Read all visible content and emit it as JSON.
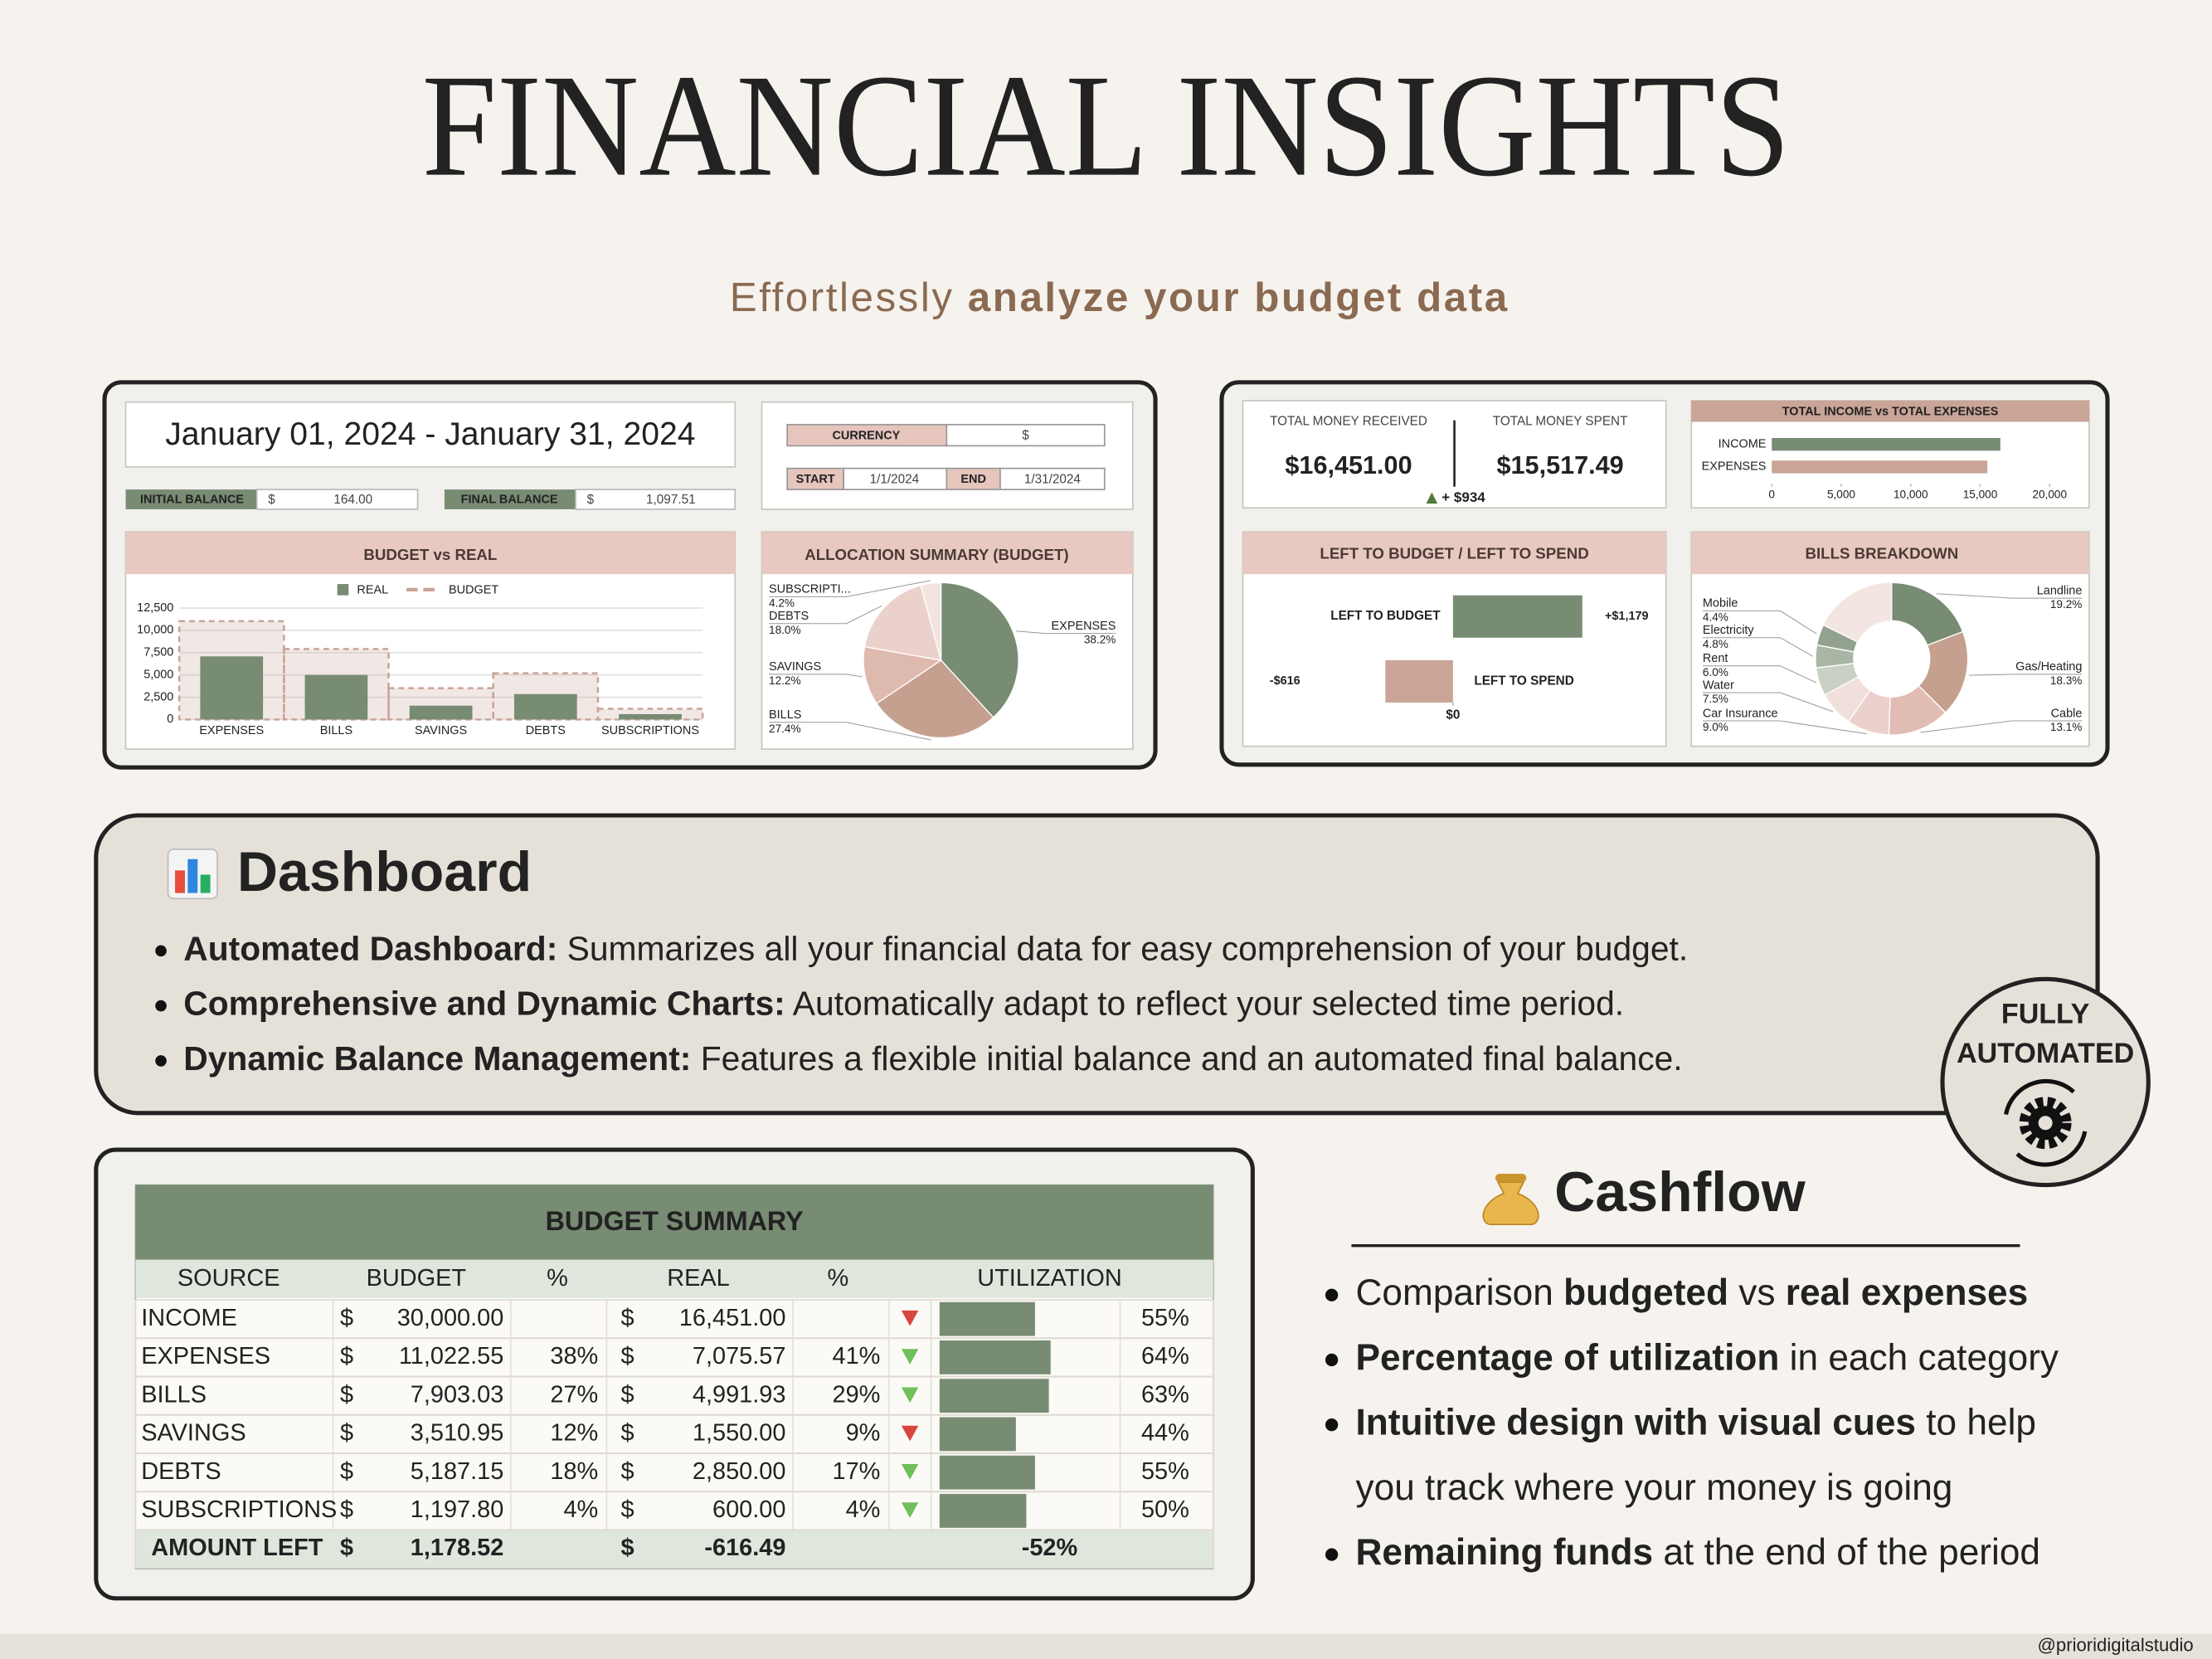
{
  "header": {
    "title": "FINANCIAL INSIGHTS",
    "subtitle": [
      {
        "text": "Effortlessly ",
        "bold": false
      },
      {
        "text": "analyze your budget data",
        "bold": true
      }
    ]
  },
  "preview": {
    "date_range": "January 01, 2024 - January 31, 2024",
    "initial_balance": {
      "label": "INITIAL BALANCE",
      "currency": "$",
      "value": "164.00"
    },
    "final_balance": {
      "label": "FINAL BALANCE",
      "currency": "$",
      "value": "1,097.51"
    },
    "settings": {
      "currency_label": "CURRENCY",
      "currency": "$",
      "start_label": "START",
      "start": "1/1/2024",
      "end_label": "END",
      "end": "1/31/2024"
    },
    "totals": {
      "received_label": "TOTAL MONEY RECEIVED",
      "received": "$16,451.00",
      "spent_label": "TOTAL MONEY SPENT",
      "spent": "$15,517.49",
      "difference": "+ $934"
    }
  },
  "chart_data": [
    {
      "type": "bar",
      "title": "BUDGET vs REAL",
      "categories": [
        "EXPENSES",
        "BILLS",
        "SAVINGS",
        "DEBTS",
        "SUBSCRIPTIONS"
      ],
      "series": [
        {
          "name": "REAL",
          "color": "#788b73",
          "values": [
            7075.57,
            4991.93,
            1550,
            2850,
            600
          ]
        },
        {
          "name": "BUDGET",
          "color": "#c9a497",
          "style": "dashed-area",
          "values": [
            11022.55,
            7903.03,
            3510.95,
            5187.15,
            1197.8
          ]
        }
      ],
      "ylim": [
        0,
        12500
      ],
      "yticks": [
        0,
        {
          "value": 2500,
          "label": "2,500"
        },
        {
          "value": 5000,
          "label": "5,000"
        },
        {
          "value": 7500,
          "label": "7,500"
        },
        {
          "value": 10000,
          "label": "10,000"
        },
        {
          "value": 12500,
          "label": "12,500"
        }
      ],
      "grid": true
    },
    {
      "type": "pie",
      "title": "ALLOCATION SUMMARY (BUDGET)",
      "categories": [
        "EXPENSES",
        "BILLS",
        "SAVINGS",
        "DEBTS",
        "SUBSCRIPTI..."
      ],
      "values": [
        38.2,
        27.4,
        12.2,
        18.0,
        4.2
      ],
      "value_labels": [
        "38.2%",
        "27.4%",
        "12.2%",
        "18.0%",
        "4.2%"
      ],
      "colors": [
        "#788b73",
        "#c6a08f",
        "#deb9ae",
        "#ebd1cb",
        "#f4e4e0"
      ]
    },
    {
      "type": "hbar",
      "title": "TOTAL INCOME vs TOTAL EXPENSES",
      "categories": [
        "INCOME",
        "EXPENSES"
      ],
      "values": [
        16451,
        15517.49
      ],
      "colors": [
        "#788b73",
        "#c9a497"
      ],
      "xlim": [
        0,
        20000
      ],
      "xticks": [
        0,
        {
          "value": 5000,
          "label": "5,000"
        },
        {
          "value": 10000,
          "label": "10,000"
        },
        {
          "value": 15000,
          "label": "15,000"
        },
        {
          "value": 20000,
          "label": "20,000"
        }
      ]
    },
    {
      "type": "diverging",
      "title": "LEFT TO BUDGET / LEFT TO SPEND",
      "categories": [
        "LEFT TO BUDGET",
        "LEFT TO SPEND"
      ],
      "values": [
        1178.52,
        -616.49
      ],
      "value_labels": [
        "+$1,179",
        "-$616"
      ],
      "colors": [
        "#788b73",
        "#c9a497"
      ],
      "label_colors": [
        "#4f7a3a",
        "#c0392b"
      ],
      "xlim": [
        -1800,
        1800
      ],
      "xticks": [
        {
          "value": 0,
          "label": "$0"
        }
      ]
    },
    {
      "type": "donut",
      "title": "BILLS BREAKDOWN",
      "categories": [
        "Landline",
        "Gas/Heating",
        "Cable",
        "Car Insurance",
        "Water",
        "Rent",
        "Electricity",
        "Mobile"
      ],
      "values": [
        19.2,
        18.3,
        13.1,
        9.0,
        7.5,
        6.0,
        4.8,
        4.4
      ],
      "value_labels": [
        "19.2%",
        "18.3%",
        "13.1%",
        "9.0%",
        "7.5%",
        "6.0%",
        "4.8%",
        "4.4%"
      ],
      "colors": [
        "#788b73",
        "#c6a08f",
        "#e0bcb2",
        "#ebd1cb",
        "#f1dfdb",
        "#c9d1c4",
        "#aab6a4",
        "#93a28d"
      ]
    }
  ],
  "dashboard": {
    "heading": "Dashboard",
    "bullets": [
      {
        "bold": "Automated Dashboard:",
        "text": " Summarizes all your financial data for easy comprehension of your budget."
      },
      {
        "bold": "Comprehensive and Dynamic Charts:",
        "text": " Automatically adapt to reflect your selected time period."
      },
      {
        "bold": "Dynamic Balance Management:",
        "text": " Features a flexible initial balance and an automated final balance."
      }
    ]
  },
  "badge": {
    "lines": [
      "FULLY",
      "AUTOMATED"
    ]
  },
  "budget_summary": {
    "title": "BUDGET SUMMARY",
    "columns": [
      "SOURCE",
      "BUDGET",
      "%",
      "REAL",
      "%",
      "UTILIZATION"
    ],
    "rows": [
      {
        "source": "INCOME",
        "budget_currency": "$",
        "budget": "30,000.00",
        "real_currency": "$",
        "real": "16,451.00",
        "arrow_color": "#d9453f",
        "utilization": {
          "value": 55,
          "label": "55%"
        }
      },
      {
        "source": "EXPENSES",
        "budget_currency": "$",
        "budget": "11,022.55",
        "budget_pct": "38%",
        "real_currency": "$",
        "real": "7,075.57",
        "real_pct": "41%",
        "arrow_color": "#6fbf5a",
        "utilization": {
          "value": 64,
          "label": "64%"
        }
      },
      {
        "source": "BILLS",
        "budget_currency": "$",
        "budget": "7,903.03",
        "budget_pct": "27%",
        "real_currency": "$",
        "real": "4,991.93",
        "real_pct": "29%",
        "arrow_color": "#6fbf5a",
        "utilization": {
          "value": 63,
          "label": "63%"
        }
      },
      {
        "source": "SAVINGS",
        "budget_currency": "$",
        "budget": "3,510.95",
        "budget_pct": "12%",
        "real_currency": "$",
        "real": "1,550.00",
        "real_pct": "9%",
        "arrow_color": "#d9453f",
        "utilization": {
          "value": 44,
          "label": "44%"
        }
      },
      {
        "source": "DEBTS",
        "budget_currency": "$",
        "budget": "5,187.15",
        "budget_pct": "18%",
        "real_currency": "$",
        "real": "2,850.00",
        "real_pct": "17%",
        "arrow_color": "#6fbf5a",
        "utilization": {
          "value": 55,
          "label": "55%"
        }
      },
      {
        "source": "SUBSCRIPTIONS",
        "budget_currency": "$",
        "budget": "1,197.80",
        "budget_pct": "4%",
        "real_currency": "$",
        "real": "600.00",
        "real_pct": "4%",
        "arrow_color": "#6fbf5a",
        "utilization": {
          "value": 50,
          "label": "50%"
        }
      }
    ],
    "total": {
      "source": "AMOUNT LEFT",
      "budget_currency": "$",
      "budget": "1,178.52",
      "real_currency": "$",
      "real": "-616.49",
      "utilization": "-52%"
    }
  },
  "cashflow": {
    "heading": "Cashflow",
    "bullets": [
      [
        [
          {
            "text": "Comparison ",
            "bold": false
          },
          {
            "text": "budgeted",
            "bold": true
          },
          {
            "text": " vs ",
            "bold": false
          },
          {
            "text": "real expenses",
            "bold": true
          }
        ]
      ],
      [
        [
          {
            "text": "Percentage of utilization",
            "bold": true
          },
          {
            "text": " in each category",
            "bold": false
          }
        ]
      ],
      [
        [
          {
            "text": "Intuitive design with visual cues",
            "bold": true
          },
          {
            "text": " to help",
            "bold": false
          }
        ],
        [
          {
            "text": "you track where your money is going",
            "bold": false
          }
        ]
      ],
      [
        [
          {
            "text": "Remaining funds",
            "bold": true
          },
          {
            "text": " at the end of the period",
            "bold": false
          }
        ]
      ]
    ]
  },
  "footer": {
    "credit": "@prioridigitalstudio"
  }
}
